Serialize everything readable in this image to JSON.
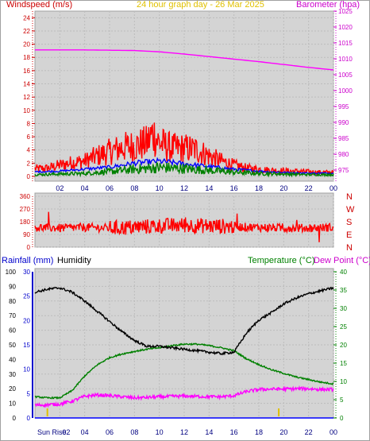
{
  "page": {
    "background": "#ffffff",
    "border": "#a0a0a0"
  },
  "chart_data": [
    {
      "type": "line",
      "name": "wind-barometer",
      "title": "24 hour graph day - 26 Mar 2025",
      "left_axis_label": "Windspeed (m/s)",
      "right_axis_label": "Barometer (hpa)",
      "x_ticks": [
        "02",
        "04",
        "06",
        "08",
        "10",
        "12",
        "14",
        "16",
        "18",
        "20",
        "22",
        "00"
      ],
      "x_tick_hours": [
        2,
        4,
        6,
        8,
        10,
        12,
        14,
        16,
        18,
        20,
        22,
        24
      ],
      "x_range": [
        0,
        24
      ],
      "y_left": {
        "range": [
          0,
          25
        ],
        "ticks": [
          "0",
          "2",
          "4",
          "6",
          "8",
          "10",
          "12",
          "14",
          "16",
          "18",
          "20",
          "22",
          "24"
        ]
      },
      "y_right": {
        "range": [
          973,
          1025
        ],
        "ticks": [
          "975",
          "980",
          "985",
          "990",
          "995",
          "1000",
          "1005",
          "1010",
          "1015",
          "1020",
          "1025"
        ]
      },
      "grid": true,
      "series": [
        {
          "name": "gust",
          "color": "#ff0000",
          "axis": "left",
          "x": [
            0,
            1,
            2,
            3,
            4,
            5,
            6,
            7,
            8,
            9,
            9.5,
            10,
            11,
            12,
            13,
            14,
            15,
            16,
            17,
            18,
            19,
            20,
            21,
            22,
            23,
            24
          ],
          "y": [
            1.5,
            1.6,
            2.2,
            2.7,
            3.0,
            4.0,
            4.8,
            5.6,
            6.0,
            6.5,
            8.5,
            6.5,
            5.5,
            5.5,
            5.2,
            4.0,
            3.0,
            2.2,
            1.6,
            1.4,
            1.2,
            1.1,
            1.0,
            0.9,
            0.8,
            0.8
          ]
        },
        {
          "name": "average",
          "color": "#0000ff",
          "axis": "left",
          "x": [
            0,
            2,
            4,
            6,
            8,
            10,
            12,
            14,
            16,
            18,
            20,
            22,
            24
          ],
          "y": [
            0.7,
            0.8,
            1.1,
            1.4,
            2.0,
            2.3,
            1.9,
            1.5,
            1.1,
            0.8,
            0.6,
            0.5,
            0.5
          ]
        },
        {
          "name": "wind",
          "color": "#008000",
          "axis": "left",
          "x": [
            0,
            2,
            4,
            6,
            8,
            10,
            12,
            14,
            16,
            18,
            20,
            22,
            24
          ],
          "y": [
            0.3,
            0.4,
            0.5,
            0.8,
            1.2,
            1.5,
            1.3,
            1.0,
            0.7,
            0.5,
            0.4,
            0.3,
            0.3
          ]
        },
        {
          "name": "barometer",
          "color": "#ff00ff",
          "axis": "right",
          "x": [
            0,
            2,
            4,
            6,
            8,
            10,
            12,
            14,
            16,
            18,
            20,
            22,
            24
          ],
          "y": [
            1012.8,
            1012.8,
            1012.8,
            1012.7,
            1012.6,
            1012.2,
            1011.5,
            1010.7,
            1009.9,
            1009.1,
            1008.2,
            1007.3,
            1006.5
          ]
        }
      ]
    },
    {
      "type": "line",
      "name": "wind-direction",
      "y_left": {
        "range": [
          0,
          360
        ],
        "ticks": [
          "0",
          "90",
          "180",
          "270",
          "360"
        ]
      },
      "right_labels": [
        "N",
        "W",
        "S",
        "E",
        "N"
      ],
      "x_range": [
        0,
        24
      ],
      "series": [
        {
          "name": "direction",
          "color": "#ff0000",
          "x": [
            0,
            2,
            4,
            6,
            8,
            10,
            12,
            14,
            16,
            18,
            20,
            22,
            24
          ],
          "y": [
            140,
            135,
            140,
            135,
            140,
            150,
            155,
            150,
            145,
            140,
            135,
            135,
            140
          ]
        }
      ]
    },
    {
      "type": "line",
      "name": "rain-humidity-temperature",
      "labels": {
        "rainfall": "Rainfall (mm)",
        "humidity": "Humidity",
        "temperature": "Temperature (°C)",
        "dew_point": "Dew Point (°C)",
        "sunrise": "Sun Rise"
      },
      "y_humidity": {
        "range": [
          0,
          100
        ],
        "ticks": [
          "0",
          "10",
          "20",
          "30",
          "40",
          "50",
          "60",
          "70",
          "80",
          "90",
          "100"
        ]
      },
      "y_rain": {
        "range": [
          0,
          30
        ],
        "ticks": [
          "0",
          "5",
          "10",
          "15",
          "20",
          "25",
          "30"
        ]
      },
      "y_temp": {
        "range": [
          0,
          40
        ],
        "ticks": [
          "0",
          "5",
          "10",
          "15",
          "20",
          "25",
          "30",
          "35",
          "40"
        ]
      },
      "x_range": [
        0,
        24
      ],
      "sunrise_hour": 1.0,
      "sunset_hour": 19.6,
      "series": [
        {
          "name": "humidity",
          "color": "#000000",
          "axis": "humidity",
          "x": [
            0,
            1,
            2,
            3,
            4,
            5,
            6,
            7,
            8,
            9,
            10,
            11,
            12,
            13,
            14,
            15,
            16,
            17,
            18,
            19,
            20,
            21,
            22,
            23,
            24
          ],
          "y": [
            86,
            88,
            89,
            86,
            80,
            73,
            66,
            59,
            53,
            49,
            49,
            48,
            47,
            46,
            45,
            44,
            45,
            58,
            67,
            72,
            78,
            82,
            85,
            87,
            89
          ]
        },
        {
          "name": "temperature",
          "color": "#008000",
          "axis": "temp",
          "x": [
            0,
            1,
            2,
            3,
            4,
            5,
            6,
            7,
            8,
            9,
            10,
            11,
            12,
            13,
            14,
            15,
            16,
            17,
            18,
            19,
            20,
            21,
            22,
            23,
            24
          ],
          "y": [
            5.8,
            5.5,
            5.5,
            7.5,
            11.5,
            14.5,
            16.5,
            17.5,
            18.2,
            18.8,
            19.2,
            19.8,
            20.2,
            20.2,
            19.8,
            19.2,
            18.4,
            16.2,
            14.6,
            13.2,
            12.2,
            11.2,
            10.5,
            9.8,
            9.3
          ]
        },
        {
          "name": "dew point",
          "color": "#ff00ff",
          "axis": "temp",
          "x": [
            0,
            1,
            2,
            3,
            4,
            5,
            6,
            7,
            8,
            9,
            10,
            11,
            12,
            13,
            14,
            15,
            16,
            17,
            18,
            19,
            20,
            21,
            22,
            23,
            24
          ],
          "y": [
            3.5,
            3.6,
            3.8,
            4.6,
            5.9,
            6.3,
            6.1,
            5.8,
            5.5,
            5.6,
            5.8,
            5.9,
            6.0,
            5.9,
            5.8,
            5.8,
            6.1,
            7.2,
            7.8,
            7.9,
            7.9,
            8.0,
            8.0,
            7.8,
            7.8
          ]
        },
        {
          "name": "rainfall",
          "color": "#0000ff",
          "axis": "rain",
          "x": [
            0,
            24
          ],
          "y": [
            0,
            0
          ]
        }
      ]
    }
  ]
}
